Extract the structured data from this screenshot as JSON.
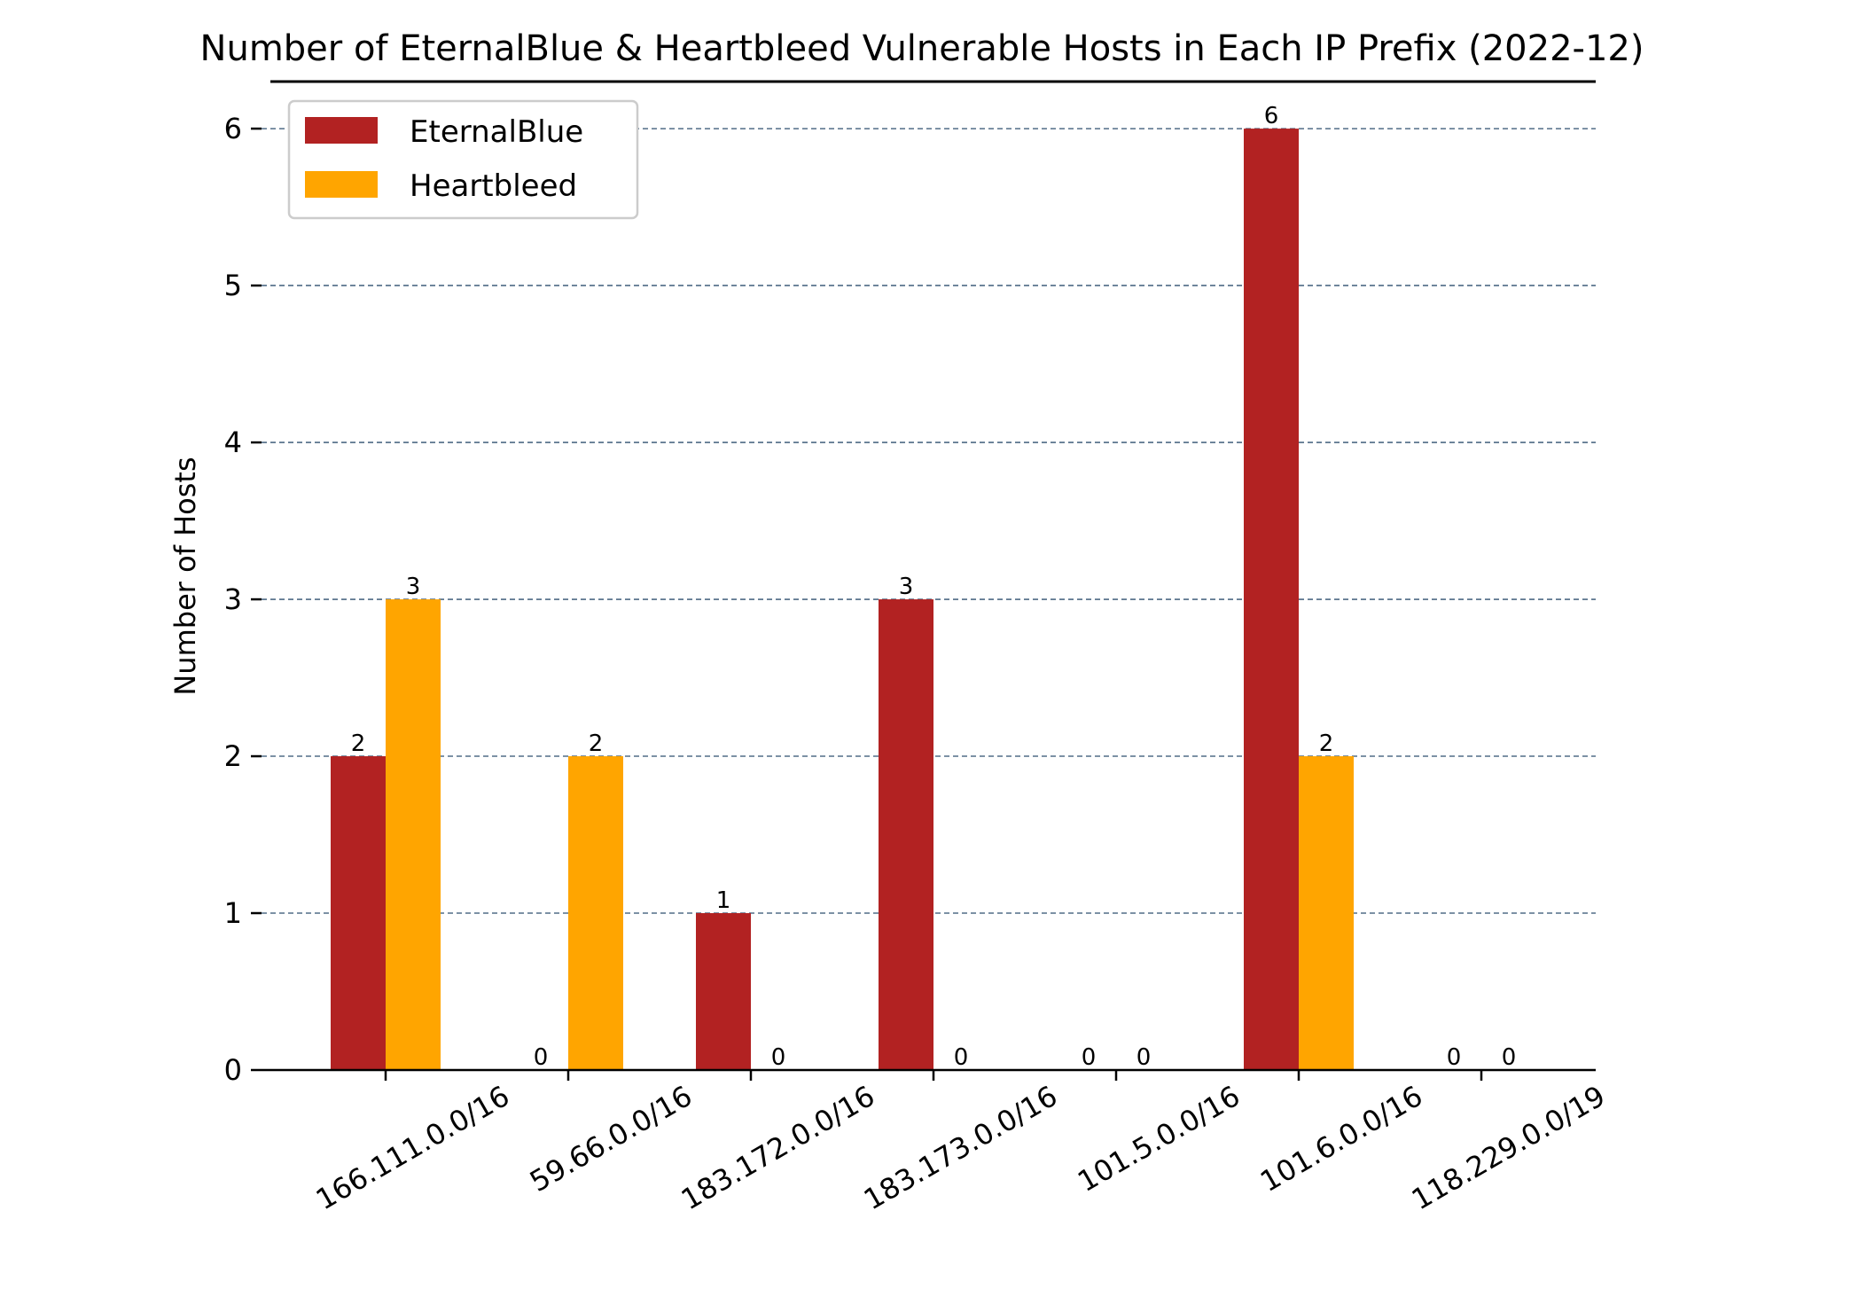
{
  "chart_data": {
    "type": "bar",
    "title": "Number of EternalBlue & Heartbleed Vulnerable Hosts in Each IP Prefix (2022-12)",
    "xlabel": "",
    "ylabel": "Number of Hosts",
    "categories": [
      "166.111.0.0/16",
      "59.66.0.0/16",
      "183.172.0.0/16",
      "183.173.0.0/16",
      "101.5.0.0/16",
      "101.6.0.0/16",
      "118.229.0.0/19"
    ],
    "series": [
      {
        "name": "EternalBlue",
        "color": "#b22222",
        "values": [
          2,
          0,
          1,
          3,
          0,
          6,
          0
        ]
      },
      {
        "name": "Heartbleed",
        "color": "#ffa500",
        "values": [
          3,
          2,
          0,
          0,
          0,
          2,
          0
        ]
      }
    ],
    "ylim": [
      0,
      6.3
    ],
    "yticks": [
      0,
      1,
      2,
      3,
      4,
      5,
      6
    ],
    "grid": "horizontal dashed",
    "legend_position": "top-left",
    "grid_color": "#2f4f6f",
    "axis_color": "#000000"
  }
}
